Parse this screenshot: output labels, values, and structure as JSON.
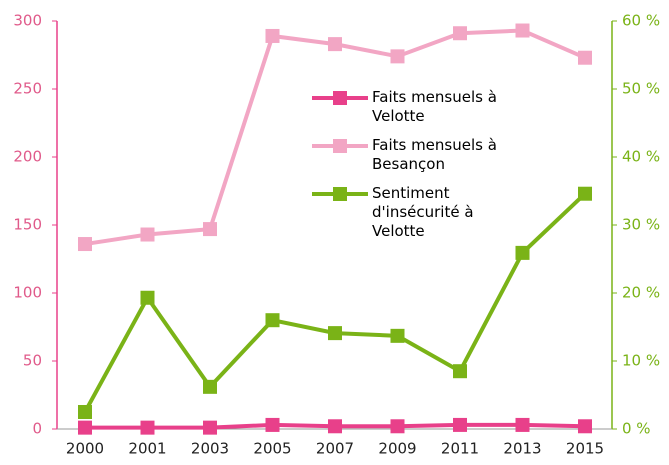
{
  "chart_data": {
    "type": "line",
    "categories": [
      "2000",
      "2001",
      "2003",
      "2005",
      "2007",
      "2009",
      "2011",
      "2013",
      "2015"
    ],
    "series": [
      {
        "name": "Faits mensuels à Velotte",
        "color": "#e8408a",
        "values": [
          1,
          1,
          1,
          3,
          2,
          2,
          3,
          3,
          2
        ]
      },
      {
        "name": "Faits mensuels à Besançon",
        "color": "#f2a6c4",
        "values": [
          136,
          143,
          147,
          289,
          283,
          274,
          291,
          293,
          273
        ]
      },
      {
        "name": "Sentiment d'insécurité à Velotte",
        "color": "#7ab317",
        "axis": "y2",
        "values": [
          2.5,
          19.3,
          6.2,
          16,
          14.1,
          13.7,
          8.5,
          25.9,
          34.6
        ]
      }
    ],
    "ylim": [
      0,
      300
    ],
    "yticks": [
      0,
      50,
      100,
      150,
      200,
      250,
      300
    ],
    "y2lim": [
      0,
      60
    ],
    "y2ticks": [
      {
        "value": 0,
        "label": "0 %"
      },
      {
        "value": 10,
        "label": "10 %"
      },
      {
        "value": 20,
        "label": "20 %"
      },
      {
        "value": 30,
        "label": "30 %"
      },
      {
        "value": 40,
        "label": "40 %"
      },
      {
        "value": 50,
        "label": "50 %"
      },
      {
        "value": 60,
        "label": "60 %"
      }
    ],
    "grid": false
  }
}
